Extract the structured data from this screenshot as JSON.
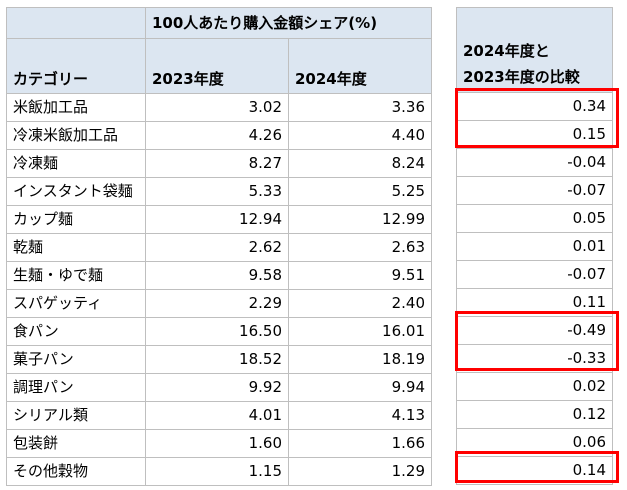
{
  "header": {
    "group_title": "100人あたり購入金額シェア(%)",
    "category_label": "カテゴリー",
    "year_2023": "2023年度",
    "year_2024": "2024年度",
    "diff_label_line1": "2024年度と",
    "diff_label_line2": "2023年度の比較"
  },
  "rows": [
    {
      "category": "米飯加工品",
      "v2023": "3.02",
      "v2024": "3.36",
      "diff": "0.34"
    },
    {
      "category": "冷凍米飯加工品",
      "v2023": "4.26",
      "v2024": "4.40",
      "diff": "0.15"
    },
    {
      "category": "冷凍麺",
      "v2023": "8.27",
      "v2024": "8.24",
      "diff": "-0.04"
    },
    {
      "category": "インスタント袋麺",
      "v2023": "5.33",
      "v2024": "5.25",
      "diff": "-0.07"
    },
    {
      "category": "カップ麺",
      "v2023": "12.94",
      "v2024": "12.99",
      "diff": "0.05"
    },
    {
      "category": "乾麺",
      "v2023": "2.62",
      "v2024": "2.63",
      "diff": "0.01"
    },
    {
      "category": "生麺・ゆで麺",
      "v2023": "9.58",
      "v2024": "9.51",
      "diff": "-0.07"
    },
    {
      "category": "スパゲッティ",
      "v2023": "2.29",
      "v2024": "2.40",
      "diff": "0.11"
    },
    {
      "category": "食パン",
      "v2023": "16.50",
      "v2024": "16.01",
      "diff": "-0.49"
    },
    {
      "category": "菓子パン",
      "v2023": "18.52",
      "v2024": "18.19",
      "diff": "-0.33"
    },
    {
      "category": "調理パン",
      "v2023": "9.92",
      "v2024": "9.94",
      "diff": "0.02"
    },
    {
      "category": "シリアル類",
      "v2023": "4.01",
      "v2024": "4.13",
      "diff": "0.12"
    },
    {
      "category": "包装餅",
      "v2023": "1.60",
      "v2024": "1.66",
      "diff": "0.06"
    },
    {
      "category": "その他穀物",
      "v2023": "1.15",
      "v2024": "1.29",
      "diff": "0.14"
    }
  ],
  "colors": {
    "header_bg": "#dce6f1",
    "grid": "#bfbfbf",
    "highlight": "#ff0000"
  }
}
